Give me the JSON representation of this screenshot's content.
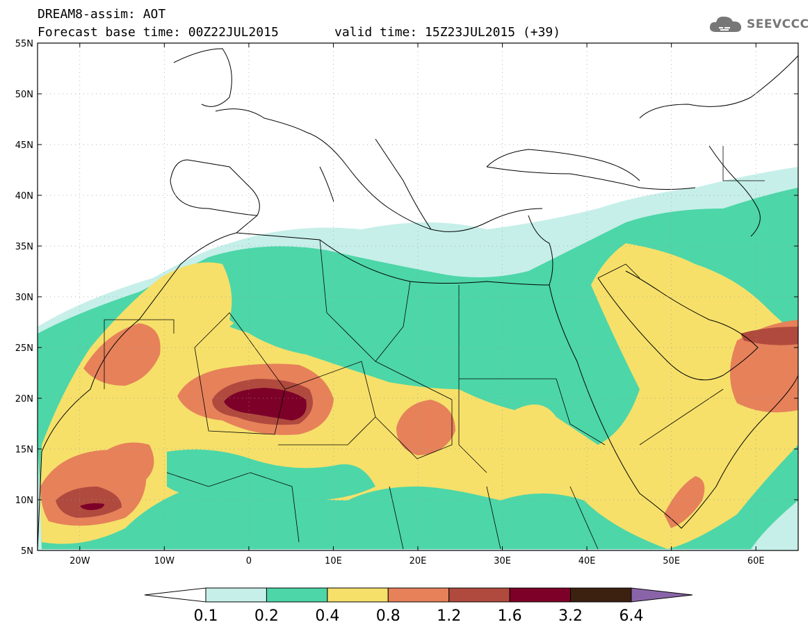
{
  "header": {
    "title": "DREAM8-assim: AOT",
    "base_time": "Forecast base time: 00Z22JUL2015",
    "valid_time": "valid time: 15Z23JUL2015 (+39)"
  },
  "logo": {
    "text": "SEEVCCC",
    "icon": "cloud-icon"
  },
  "map": {
    "lat_labels": [
      "55N",
      "50N",
      "45N",
      "40N",
      "35N",
      "30N",
      "25N",
      "20N",
      "15N",
      "10N",
      "5N"
    ],
    "lon_labels": [
      "20W",
      "10W",
      "0",
      "10E",
      "20E",
      "30E",
      "40E",
      "50E",
      "60E"
    ],
    "lat_range": [
      5,
      55
    ],
    "lon_range": [
      -25,
      65
    ]
  },
  "colorbar": {
    "levels": [
      "0.1",
      "0.2",
      "0.4",
      "0.8",
      "1.2",
      "1.6",
      "3.2",
      "6.4"
    ],
    "colors": [
      "#ffffff",
      "#c6efe9",
      "#4dd6a8",
      "#f6e06a",
      "#e6815a",
      "#b04a3e",
      "#7d0028",
      "#3c2010",
      "#8a64a8"
    ]
  }
}
